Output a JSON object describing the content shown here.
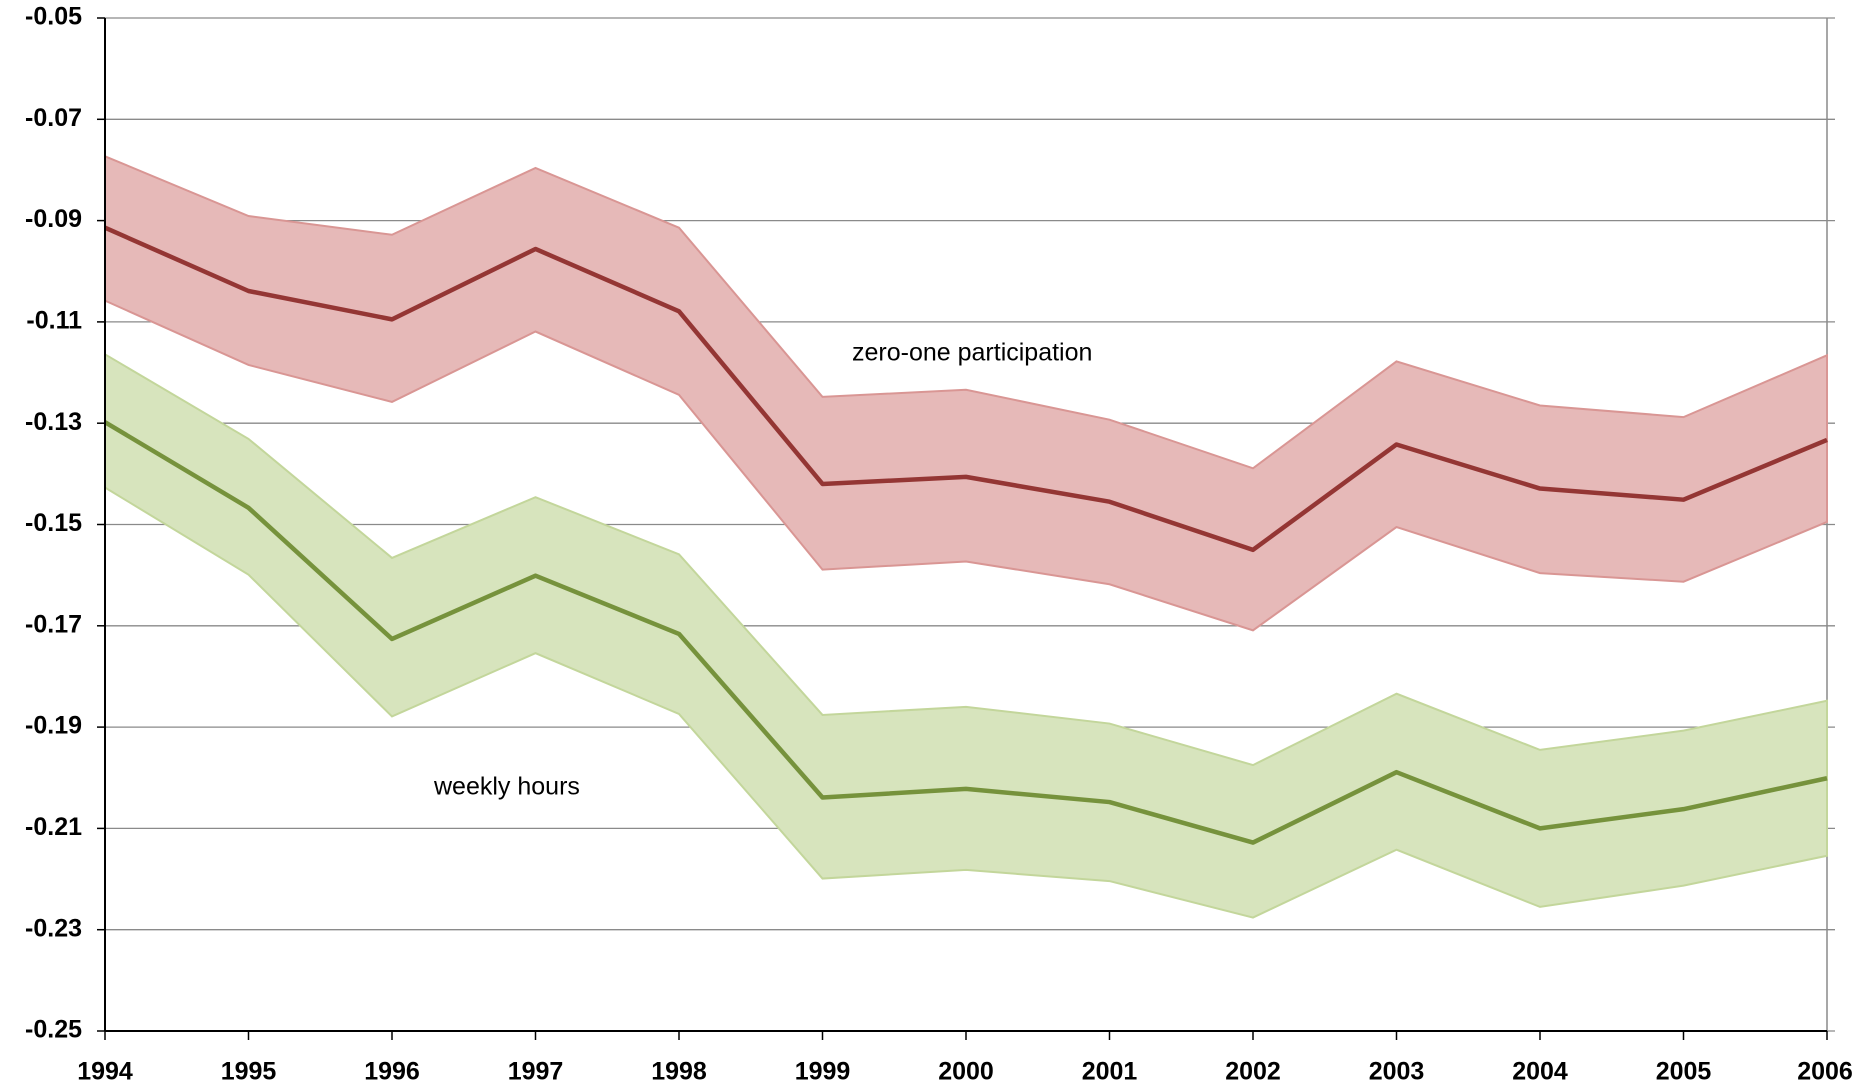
{
  "chart_data": {
    "type": "band-line",
    "x": [
      1994,
      1995,
      1996,
      1997,
      1998,
      1999,
      2000,
      2001,
      2002,
      2003,
      2004,
      2005,
      2006
    ],
    "xlim": [
      1994,
      2006
    ],
    "xticks": [
      1994,
      1995,
      1996,
      1997,
      1998,
      1999,
      2000,
      2001,
      2002,
      2003,
      2004,
      2005,
      2006
    ],
    "ylim": [
      -0.25,
      -0.05
    ],
    "yticks": [
      -0.25,
      -0.23,
      -0.21,
      -0.19,
      -0.17,
      -0.15,
      -0.13,
      -0.11,
      -0.09,
      -0.07,
      -0.05
    ],
    "grid": true,
    "series": [
      {
        "name": "zero-one participation",
        "color": "#943634",
        "band_color": "#e6b9b8",
        "band_edge": "#d99694",
        "values": [
          -0.0914,
          -0.1039,
          -0.1095,
          -0.0956,
          -0.1079,
          -0.142,
          -0.1406,
          -0.1455,
          -0.155,
          -0.1342,
          -0.1429,
          -0.1451,
          -0.1333
        ],
        "upper": [
          -0.0773,
          -0.0891,
          -0.0928,
          -0.0796,
          -0.0914,
          -0.1248,
          -0.1234,
          -0.1293,
          -0.1389,
          -0.1178,
          -0.1265,
          -0.1288,
          -0.1166
        ],
        "lower": [
          -0.1058,
          -0.1185,
          -0.1258,
          -0.1119,
          -0.1244,
          -0.1589,
          -0.1573,
          -0.1618,
          -0.1709,
          -0.1505,
          -0.1596,
          -0.1613,
          -0.1495
        ]
      },
      {
        "name": "weekly hours",
        "color": "#76923c",
        "band_color": "#d7e4bd",
        "band_edge": "#c3d69b",
        "values": [
          -0.1298,
          -0.1467,
          -0.1726,
          -0.1601,
          -0.1716,
          -0.2039,
          -0.2022,
          -0.2048,
          -0.2128,
          -0.1989,
          -0.21,
          -0.2062,
          -0.2001
        ],
        "upper": [
          -0.1164,
          -0.1331,
          -0.1566,
          -0.1446,
          -0.1559,
          -0.1876,
          -0.186,
          -0.1893,
          -0.1975,
          -0.1834,
          -0.1945,
          -0.1907,
          -0.1848
        ],
        "lower": [
          -0.1427,
          -0.1599,
          -0.1879,
          -0.1754,
          -0.1874,
          -0.2199,
          -0.2182,
          -0.2204,
          -0.2276,
          -0.2142,
          -0.2255,
          -0.2213,
          -0.2154
        ]
      }
    ]
  }
}
